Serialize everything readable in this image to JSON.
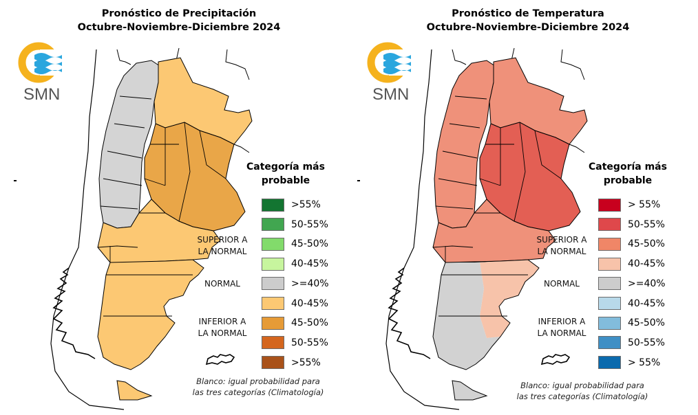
{
  "panels": [
    {
      "id": "precipitation",
      "title_line1": "Pronóstico de Precipitación",
      "title_line2": "Octubre-Noviembre-Diciembre 2024",
      "logo_text": "SMN",
      "legend_title_line1": "Categoría más",
      "legend_title_line2": "probable",
      "group_labels": {
        "above": [
          "SUPERIOR A",
          "LA NORMAL"
        ],
        "normal": "NORMAL",
        "below": [
          "INFERIOR A",
          "LA NORMAL"
        ]
      },
      "legend": [
        {
          "label": ">55%",
          "color": "#137531",
          "category": "above"
        },
        {
          "label": "50-55%",
          "color": "#41a650",
          "category": "above"
        },
        {
          "label": "45-50%",
          "color": "#82db6b",
          "category": "above"
        },
        {
          "label": "40-45%",
          "color": "#c7f59e",
          "category": "above"
        },
        {
          "label": ">=40%",
          "color": "#cccccc",
          "category": "normal"
        },
        {
          "label": "40-45%",
          "color": "#fcc873",
          "category": "below"
        },
        {
          "label": "45-50%",
          "color": "#e69b37",
          "category": "below"
        },
        {
          "label": "50-55%",
          "color": "#d4661e",
          "category": "below"
        },
        {
          "label": ">55%",
          "color": "#a9521a",
          "category": "below"
        }
      ],
      "note_line1": "Blanco: igual probabilidad para",
      "note_line2": "las tres categorías (Climatología)",
      "map_colors": {
        "north_west": "#d4d4d4",
        "north_east": "#fcc873",
        "center": "#e9a648",
        "south": "#fcc873",
        "patagonia": "#fcc873"
      }
    },
    {
      "id": "temperature",
      "title_line1": "Pronóstico de Temperatura",
      "title_line2": "Octubre-Noviembre-Diciembre 2024",
      "logo_text": "SMN",
      "legend_title_line1": "Categoría más",
      "legend_title_line2": "probable",
      "group_labels": {
        "above": [
          "SUPERIOR A",
          "LA NORMAL"
        ],
        "normal": "NORMAL",
        "below": [
          "INFERIOR A",
          "LA NORMAL"
        ]
      },
      "legend": [
        {
          "label": "> 55%",
          "color": "#c8001e",
          "category": "above"
        },
        {
          "label": "50-55%",
          "color": "#df484b",
          "category": "above"
        },
        {
          "label": "45-50%",
          "color": "#f08667",
          "category": "above"
        },
        {
          "label": "40-45%",
          "color": "#f7c3aa",
          "category": "above"
        },
        {
          "label": ">=40%",
          "color": "#cccccc",
          "category": "normal"
        },
        {
          "label": "40-45%",
          "color": "#b8d9ea",
          "category": "below"
        },
        {
          "label": "45-50%",
          "color": "#82bcdc",
          "category": "below"
        },
        {
          "label": "50-55%",
          "color": "#3f8fc5",
          "category": "below"
        },
        {
          "label": "> 55%",
          "color": "#0b6aad",
          "category": "below"
        }
      ],
      "note_line1": "Blanco: igual probabilidad para",
      "note_line2": "las tres categorías (Climatología)",
      "map_colors": {
        "north_west": "#ef917a",
        "north_east": "#ef917a",
        "center": "#e35f54",
        "south": "#f7c3aa",
        "patagonia": "#d2d2d2"
      }
    }
  ]
}
